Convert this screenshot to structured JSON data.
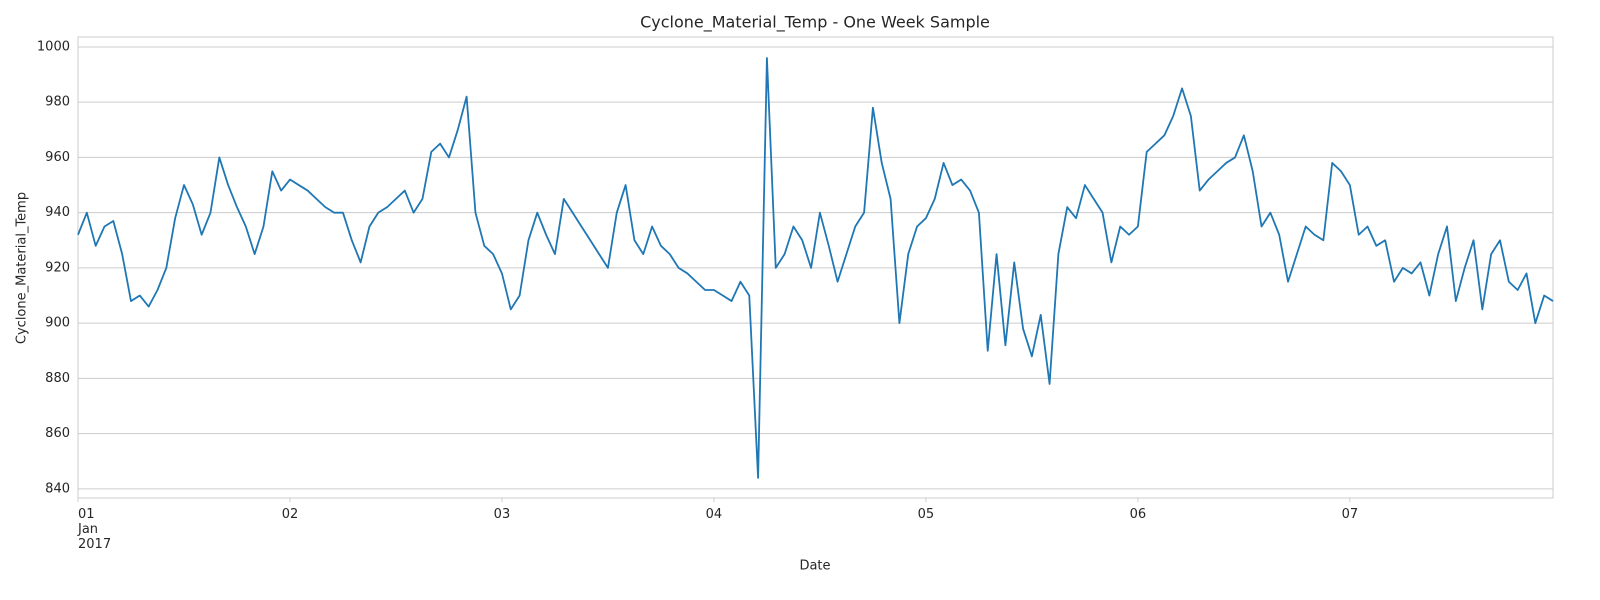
{
  "chart_data": {
    "type": "line",
    "title": "Cyclone_Material_Temp - One Week Sample",
    "xlabel": "Date",
    "ylabel": "Cyclone_Material_Temp",
    "color": "#1f77b4",
    "grid": true,
    "x": [
      "2017-01-01 00:00",
      "2017-01-01 01:00",
      "2017-01-01 02:00",
      "2017-01-01 03:00",
      "2017-01-01 04:00",
      "2017-01-01 05:00",
      "2017-01-01 06:00",
      "2017-01-01 07:00",
      "2017-01-01 08:00",
      "2017-01-01 09:00",
      "2017-01-01 10:00",
      "2017-01-01 11:00",
      "2017-01-01 12:00",
      "2017-01-01 13:00",
      "2017-01-01 14:00",
      "2017-01-01 15:00",
      "2017-01-01 16:00",
      "2017-01-01 17:00",
      "2017-01-01 18:00",
      "2017-01-01 19:00",
      "2017-01-01 20:00",
      "2017-01-01 21:00",
      "2017-01-01 22:00",
      "2017-01-01 23:00",
      "2017-01-02 00:00",
      "2017-01-02 01:00",
      "2017-01-02 02:00",
      "2017-01-02 03:00",
      "2017-01-02 04:00",
      "2017-01-02 05:00",
      "2017-01-02 06:00",
      "2017-01-02 07:00",
      "2017-01-02 08:00",
      "2017-01-02 09:00",
      "2017-01-02 10:00",
      "2017-01-02 11:00",
      "2017-01-02 12:00",
      "2017-01-02 13:00",
      "2017-01-02 14:00",
      "2017-01-02 15:00",
      "2017-01-02 16:00",
      "2017-01-02 17:00",
      "2017-01-02 18:00",
      "2017-01-02 19:00",
      "2017-01-02 20:00",
      "2017-01-02 21:00",
      "2017-01-02 22:00",
      "2017-01-02 23:00",
      "2017-01-03 00:00",
      "2017-01-03 01:00",
      "2017-01-03 02:00",
      "2017-01-03 03:00",
      "2017-01-03 04:00",
      "2017-01-03 05:00",
      "2017-01-03 06:00",
      "2017-01-03 07:00",
      "2017-01-03 08:00",
      "2017-01-03 09:00",
      "2017-01-03 10:00",
      "2017-01-03 11:00",
      "2017-01-03 12:00",
      "2017-01-03 13:00",
      "2017-01-03 14:00",
      "2017-01-03 15:00",
      "2017-01-03 16:00",
      "2017-01-03 17:00",
      "2017-01-03 18:00",
      "2017-01-03 19:00",
      "2017-01-03 20:00",
      "2017-01-03 21:00",
      "2017-01-03 22:00",
      "2017-01-03 23:00",
      "2017-01-04 00:00",
      "2017-01-04 01:00",
      "2017-01-04 02:00",
      "2017-01-04 03:00",
      "2017-01-04 04:00",
      "2017-01-04 05:00",
      "2017-01-04 06:00",
      "2017-01-04 07:00",
      "2017-01-04 08:00",
      "2017-01-04 09:00",
      "2017-01-04 10:00",
      "2017-01-04 11:00",
      "2017-01-04 12:00",
      "2017-01-04 13:00",
      "2017-01-04 14:00",
      "2017-01-04 15:00",
      "2017-01-04 16:00",
      "2017-01-04 17:00",
      "2017-01-04 18:00",
      "2017-01-04 19:00",
      "2017-01-04 20:00",
      "2017-01-04 21:00",
      "2017-01-04 22:00",
      "2017-01-04 23:00",
      "2017-01-05 00:00",
      "2017-01-05 01:00",
      "2017-01-05 02:00",
      "2017-01-05 03:00",
      "2017-01-05 04:00",
      "2017-01-05 05:00",
      "2017-01-05 06:00",
      "2017-01-05 07:00",
      "2017-01-05 08:00",
      "2017-01-05 09:00",
      "2017-01-05 10:00",
      "2017-01-05 11:00",
      "2017-01-05 12:00",
      "2017-01-05 13:00",
      "2017-01-05 14:00",
      "2017-01-05 15:00",
      "2017-01-05 16:00",
      "2017-01-05 17:00",
      "2017-01-05 18:00",
      "2017-01-05 19:00",
      "2017-01-05 20:00",
      "2017-01-05 21:00",
      "2017-01-05 22:00",
      "2017-01-05 23:00",
      "2017-01-06 00:00",
      "2017-01-06 01:00",
      "2017-01-06 02:00",
      "2017-01-06 03:00",
      "2017-01-06 04:00",
      "2017-01-06 05:00",
      "2017-01-06 06:00",
      "2017-01-06 07:00",
      "2017-01-06 08:00",
      "2017-01-06 09:00",
      "2017-01-06 10:00",
      "2017-01-06 11:00",
      "2017-01-06 12:00",
      "2017-01-06 13:00",
      "2017-01-06 14:00",
      "2017-01-06 15:00",
      "2017-01-06 16:00",
      "2017-01-06 17:00",
      "2017-01-06 18:00",
      "2017-01-06 19:00",
      "2017-01-06 20:00",
      "2017-01-06 21:00",
      "2017-01-06 22:00",
      "2017-01-06 23:00",
      "2017-01-07 00:00",
      "2017-01-07 01:00",
      "2017-01-07 02:00",
      "2017-01-07 03:00",
      "2017-01-07 04:00",
      "2017-01-07 05:00",
      "2017-01-07 06:00",
      "2017-01-07 07:00",
      "2017-01-07 08:00",
      "2017-01-07 09:00",
      "2017-01-07 10:00",
      "2017-01-07 11:00",
      "2017-01-07 12:00",
      "2017-01-07 13:00",
      "2017-01-07 14:00",
      "2017-01-07 15:00",
      "2017-01-07 16:00",
      "2017-01-07 17:00",
      "2017-01-07 18:00",
      "2017-01-07 19:00",
      "2017-01-07 20:00",
      "2017-01-07 21:00",
      "2017-01-07 22:00",
      "2017-01-07 23:00"
    ],
    "values": [
      932,
      940,
      928,
      935,
      937,
      925,
      908,
      910,
      906,
      912,
      920,
      938,
      950,
      943,
      932,
      940,
      960,
      950,
      942,
      935,
      925,
      935,
      955,
      948,
      952,
      950,
      948,
      945,
      942,
      940,
      940,
      930,
      922,
      935,
      940,
      942,
      945,
      948,
      940,
      945,
      962,
      965,
      960,
      970,
      982,
      940,
      928,
      925,
      918,
      905,
      910,
      930,
      940,
      932,
      925,
      945,
      940,
      935,
      930,
      925,
      920,
      940,
      950,
      930,
      925,
      935,
      928,
      925,
      920,
      918,
      915,
      912,
      912,
      910,
      908,
      915,
      910,
      844,
      996,
      920,
      925,
      935,
      930,
      920,
      940,
      928,
      915,
      925,
      935,
      940,
      978,
      958,
      945,
      900,
      925,
      935,
      938,
      945,
      958,
      950,
      952,
      948,
      940,
      890,
      925,
      892,
      922,
      898,
      888,
      903,
      878,
      925,
      942,
      938,
      950,
      945,
      940,
      922,
      935,
      932,
      935,
      962,
      965,
      968,
      975,
      985,
      975,
      948,
      952,
      955,
      958,
      960,
      968,
      955,
      935,
      940,
      932,
      915,
      925,
      935,
      932,
      930,
      958,
      955,
      950,
      932,
      935,
      928,
      930,
      915,
      920,
      918,
      922,
      910,
      925,
      935,
      908,
      920,
      930,
      905,
      925,
      930,
      915,
      912,
      918,
      900,
      910,
      908
    ],
    "xlim": [
      "2017-01-01 00:00",
      "2017-01-07 23:00"
    ],
    "xticks": [
      {
        "value": "2017-01-01 00:00",
        "label": "01\nJan\n2017"
      },
      {
        "value": "2017-01-02 00:00",
        "label": "02"
      },
      {
        "value": "2017-01-03 00:00",
        "label": "03"
      },
      {
        "value": "2017-01-04 00:00",
        "label": "04"
      },
      {
        "value": "2017-01-05 00:00",
        "label": "05"
      },
      {
        "value": "2017-01-06 00:00",
        "label": "06"
      },
      {
        "value": "2017-01-07 00:00",
        "label": "07"
      }
    ],
    "ylim": [
      836.7,
      1003.6
    ],
    "yticks": [
      840,
      860,
      880,
      900,
      920,
      940,
      960,
      980,
      1000
    ]
  }
}
